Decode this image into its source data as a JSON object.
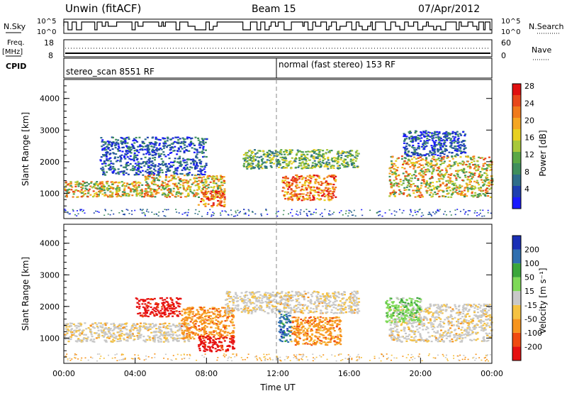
{
  "header": {
    "title": "Unwin (fitACF)",
    "beam": "Beam 15",
    "date": "07/Apr/2012"
  },
  "top_panels": {
    "nsky": {
      "label": "N.Sky",
      "ticks": [
        "10^5",
        "10^0"
      ],
      "right_ticks": [
        "10^5",
        "10^0"
      ],
      "right_label": "N.Search"
    },
    "freq": {
      "label_line1": "Freq.",
      "label_line2": "[MHz]",
      "ticks": [
        "18",
        "8"
      ],
      "right_ticks": [
        "60",
        "0"
      ],
      "right_label": "Nave"
    },
    "cpid": {
      "label": "CPID",
      "modes": [
        {
          "text": "stereo_scan 8551 RF",
          "start_hour": 0
        },
        {
          "text": "normal (fast stereo) 153 RF",
          "start_hour": 12
        }
      ]
    }
  },
  "colorbars": {
    "power": {
      "label": "Power [dB]",
      "ticks": [
        "4",
        "8",
        "12",
        "16",
        "20",
        "24",
        "28"
      ],
      "colors": [
        "#1a1aff",
        "#1e3fb0",
        "#2f6e8a",
        "#3f8f5c",
        "#5aa845",
        "#a8c83a",
        "#e8d020",
        "#f5a623",
        "#f07a1c",
        "#e8471a",
        "#e01010"
      ]
    },
    "velocity": {
      "label": "Velocity [m s⁻¹]",
      "ticks": [
        "-200",
        "-100",
        "-50",
        "-15",
        "15",
        "50",
        "100",
        "200"
      ],
      "colors": [
        "#e61010",
        "#f04a10",
        "#f7941d",
        "#f5c242",
        "#c8c8c8",
        "#7ed957",
        "#3aa63a",
        "#2f6fb0",
        "#1a2fb5"
      ]
    }
  },
  "chart_data": [
    {
      "type": "heatmap",
      "title": "",
      "quantity": "Power",
      "xlabel": "",
      "ylabel": "Slant Range [km]",
      "xlim": [
        0,
        24
      ],
      "ylim": [
        200,
        4600
      ],
      "yticks": [
        "1000",
        "2000",
        "3000",
        "4000"
      ],
      "bands": [
        {
          "x0": 0,
          "x1": 4.5,
          "y0": 900,
          "y1": 1400,
          "level": "high"
        },
        {
          "x0": 4.5,
          "x1": 9,
          "y0": 900,
          "y1": 1600,
          "level": "high"
        },
        {
          "x0": 7.5,
          "x1": 9,
          "y0": 600,
          "y1": 1100,
          "level": "very-high"
        },
        {
          "x0": 12.2,
          "x1": 15.2,
          "y0": 800,
          "y1": 1600,
          "level": "very-high"
        },
        {
          "x0": 10,
          "x1": 16.5,
          "y0": 1800,
          "y1": 2400,
          "level": "mid"
        },
        {
          "x0": 2,
          "x1": 8,
          "y0": 1600,
          "y1": 2800,
          "level": "low"
        },
        {
          "x0": 18.2,
          "x1": 24,
          "y0": 900,
          "y1": 2200,
          "level": "high"
        },
        {
          "x0": 19,
          "x1": 22.5,
          "y0": 2200,
          "y1": 3000,
          "level": "low"
        }
      ]
    },
    {
      "type": "heatmap",
      "title": "",
      "quantity": "Velocity",
      "xlabel": "Time UT",
      "ylabel": "Slant Range [km]",
      "xlim": [
        0,
        24
      ],
      "ylim": [
        200,
        4600
      ],
      "xticks": [
        "00:00",
        "04:00",
        "08:00",
        "12:00",
        "16:00",
        "20:00",
        "00:00"
      ],
      "yticks": [
        "1000",
        "2000",
        "3000",
        "4000"
      ],
      "bands": [
        {
          "x0": 0,
          "x1": 7,
          "y0": 900,
          "y1": 1500,
          "level": "-15"
        },
        {
          "x0": 4,
          "x1": 6.5,
          "y0": 1700,
          "y1": 2300,
          "level": "-200"
        },
        {
          "x0": 6.5,
          "x1": 9.5,
          "y0": 1000,
          "y1": 2000,
          "level": "-50"
        },
        {
          "x0": 7.5,
          "x1": 9.5,
          "y0": 600,
          "y1": 1100,
          "level": "-200"
        },
        {
          "x0": 12,
          "x1": 12.7,
          "y0": 900,
          "y1": 1900,
          "level": "200"
        },
        {
          "x0": 12.7,
          "x1": 15.5,
          "y0": 800,
          "y1": 1700,
          "level": "-50"
        },
        {
          "x0": 9,
          "x1": 16.5,
          "y0": 1800,
          "y1": 2500,
          "level": "-15"
        },
        {
          "x0": 18.2,
          "x1": 24,
          "y0": 900,
          "y1": 2100,
          "level": "-15"
        },
        {
          "x0": 18,
          "x1": 20,
          "y0": 1500,
          "y1": 2300,
          "level": "50"
        }
      ]
    }
  ]
}
